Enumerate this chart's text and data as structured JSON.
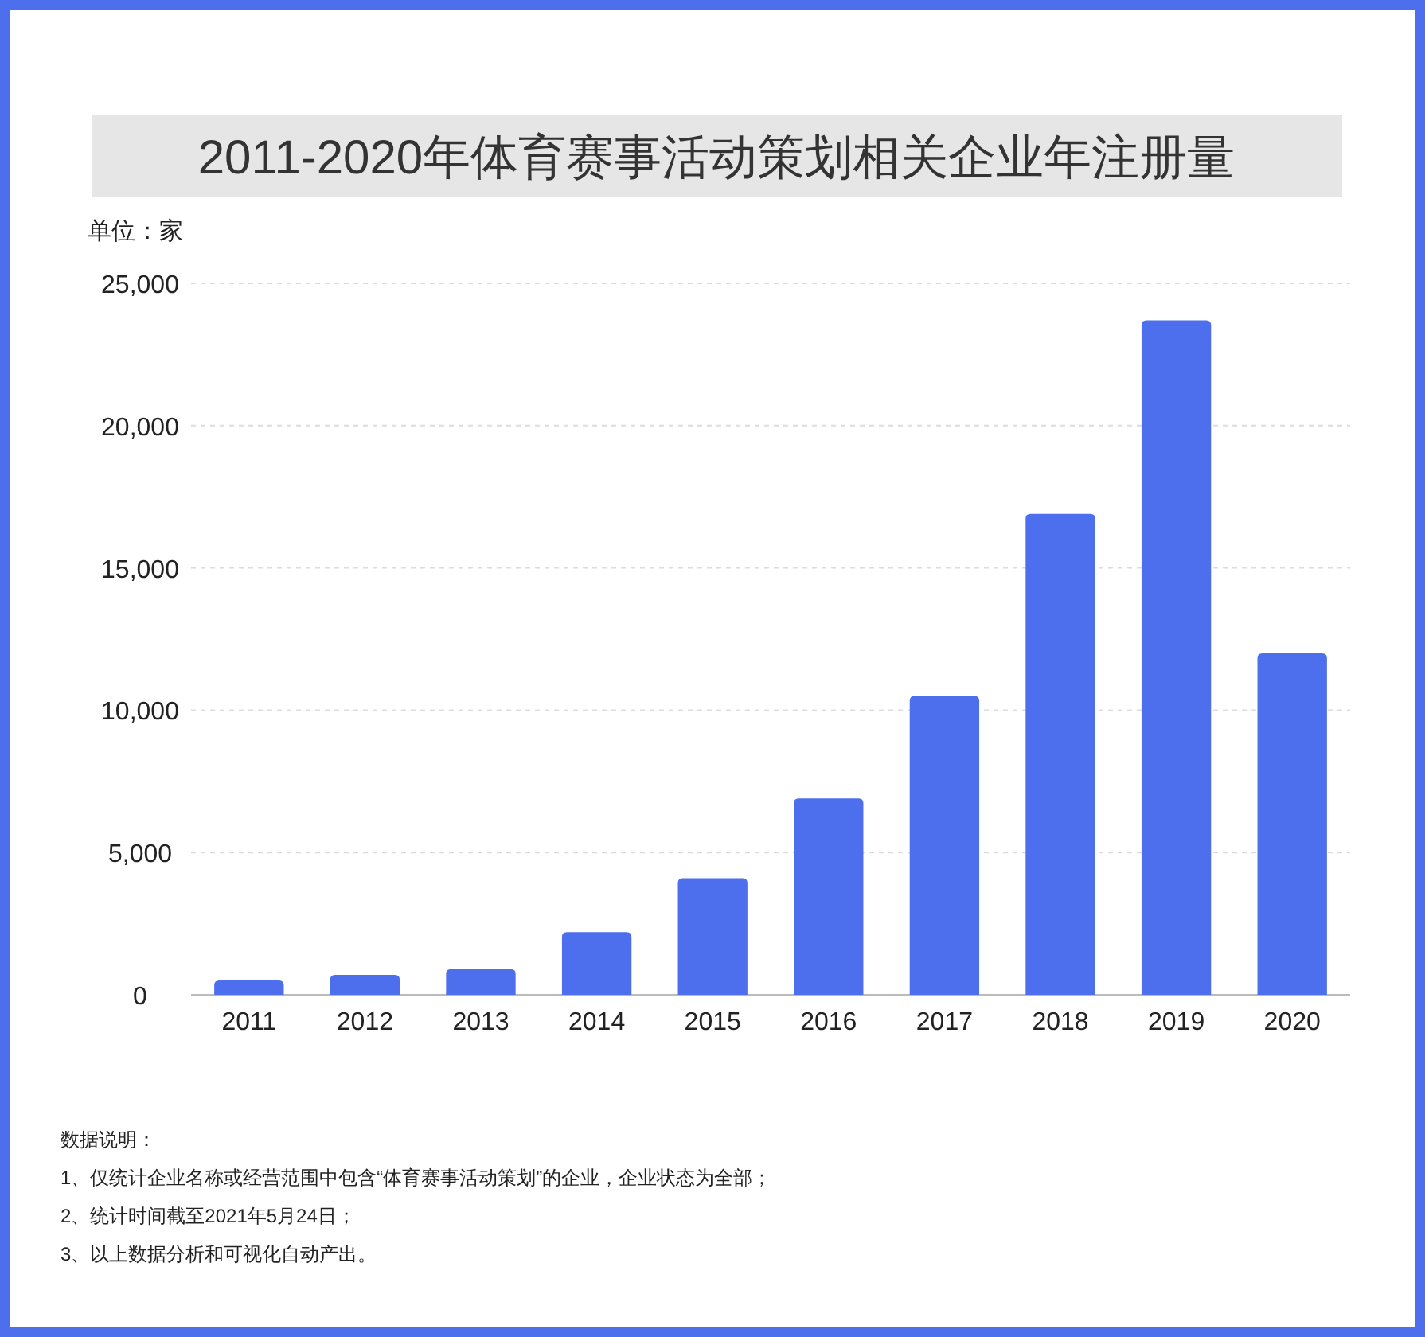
{
  "chart_data": {
    "type": "bar",
    "title": "2011-2020年体育赛事活动策划相关企业年注册量",
    "ylabel": "单位：家",
    "categories": [
      "2011",
      "2012",
      "2013",
      "2014",
      "2015",
      "2016",
      "2017",
      "2018",
      "2019",
      "2020"
    ],
    "values": [
      500,
      700,
      900,
      2200,
      4100,
      6900,
      10500,
      16900,
      23700,
      12000
    ],
    "color": "#4d6fee",
    "ylim": [
      0,
      25000
    ],
    "yticks": [
      {
        "value": 0,
        "label": "0"
      },
      {
        "value": 5000,
        "label": "5,000"
      },
      {
        "value": 10000,
        "label": "10,000"
      },
      {
        "value": 15000,
        "label": "15,000"
      },
      {
        "value": 20000,
        "label": "20,000"
      },
      {
        "value": 25000,
        "label": "25,000"
      }
    ],
    "grid": "y",
    "annotations": [
      "数据说明：",
      "1、仅统计企业名称或经营范围中包含“体育赛事活动策划”的企业，企业状态为全部；",
      "2、统计时间截至2021年5月24日；",
      "3、以上数据分析和可视化自动产出。"
    ]
  }
}
